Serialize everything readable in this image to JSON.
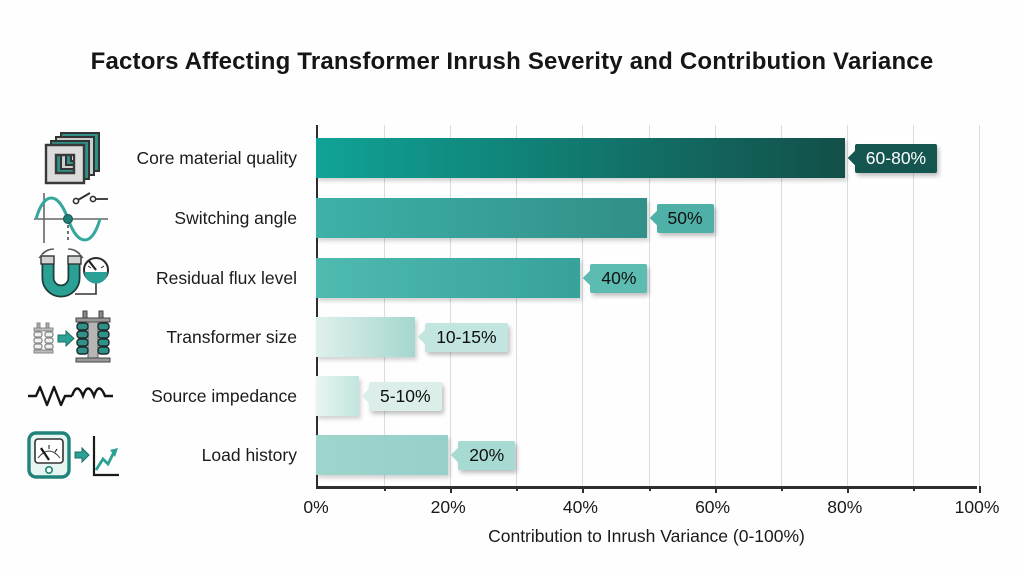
{
  "title": "Factors Affecting Transformer Inrush Severity and Contribution Variance",
  "chart_data": {
    "type": "bar",
    "orientation": "horizontal",
    "title": "Factors Affecting Transformer Inrush Severity and Contribution Variance",
    "xlabel": "Contribution to Inrush Variance (0-100%)",
    "xlim": [
      0,
      100
    ],
    "x_ticks": [
      "0%",
      "20%",
      "40%",
      "60%",
      "80%",
      "100%"
    ],
    "grid": "vertical gridlines every 10%",
    "legend": "none",
    "categories": [
      "Core material quality",
      "Switching angle",
      "Residual flux level",
      "Transformer size",
      "Source impedance",
      "Load history"
    ],
    "values": [
      80,
      50,
      40,
      15,
      6.5,
      20
    ],
    "value_labels": [
      "60-80%",
      "50%",
      "40%",
      "10-15%",
      "5-10%",
      "20%"
    ],
    "icons": [
      "laminated-core-icon",
      "sine-wave-switch-icon",
      "horseshoe-magnet-gauge-icon",
      "transformer-size-compare-icon",
      "resistor-inductor-icon",
      "meter-trend-chart-icon"
    ],
    "bar_colors": [
      {
        "start": "#10a396",
        "end": "#134f49"
      },
      {
        "start": "#3db1a8",
        "end": "#318f88"
      },
      {
        "start": "#4fbab0",
        "end": "#37a29a"
      },
      {
        "start": "#dff0ec",
        "end": "#a4d7ce"
      },
      {
        "start": "#e8f5f1",
        "end": "#c2e5de"
      },
      {
        "start": "#9ed5cd",
        "end": "#96d0c8"
      }
    ],
    "callout_colors": [
      {
        "bg": "#14564f",
        "text": "#ffffff"
      },
      {
        "bg": "#4fb0a7",
        "text": "#101010"
      },
      {
        "bg": "#5dbcb2",
        "text": "#101010"
      },
      {
        "bg": "#c3e5df",
        "text": "#101010"
      },
      {
        "bg": "#dceeea",
        "text": "#101010"
      },
      {
        "bg": "#a7dad2",
        "text": "#101010"
      }
    ],
    "accent_color": "#2ba195",
    "axis_color": "#2e2e2e",
    "gridline_color": "#d9dddd"
  }
}
